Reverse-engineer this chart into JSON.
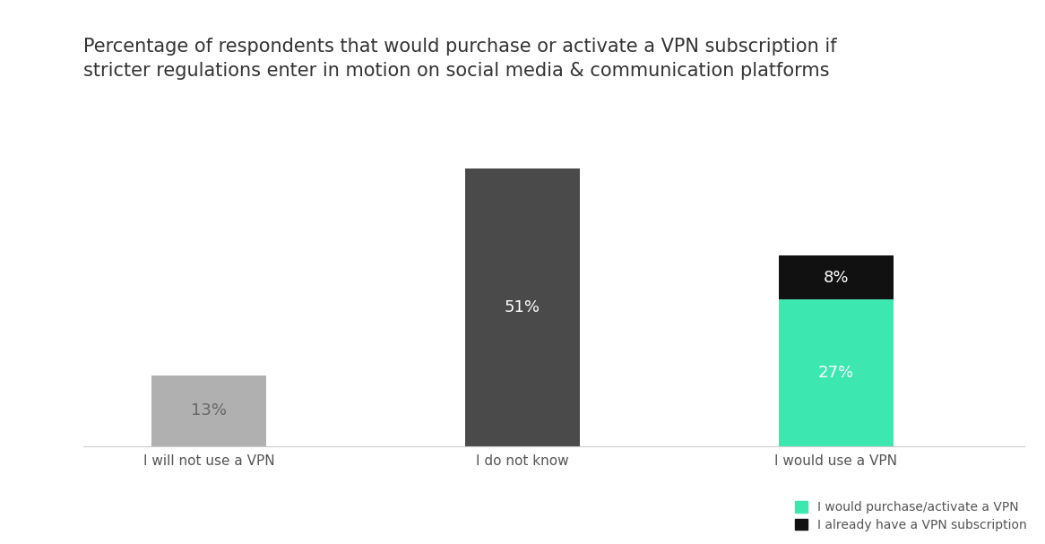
{
  "title": "Percentage of respondents that would purchase or activate a VPN subscription if\nstricter regulations enter in motion on social media & communication platforms",
  "bars": [
    {
      "label": "I will not use a VPN",
      "segments": [
        {
          "value": 13,
          "color": "#b0b0b0",
          "text": "13%",
          "text_color": "#666666"
        }
      ]
    },
    {
      "label": "I do not know",
      "segments": [
        {
          "value": 51,
          "color": "#4a4a4a",
          "text": "51%",
          "text_color": "#ffffff"
        }
      ]
    },
    {
      "label": "I would use a VPN",
      "segments": [
        {
          "value": 27,
          "color": "#3de8b0",
          "text": "27%",
          "text_color": "#ffffff"
        },
        {
          "value": 8,
          "color": "#111111",
          "text": "8%",
          "text_color": "#ffffff"
        }
      ]
    }
  ],
  "legend": [
    {
      "label": "I would purchase/activate a VPN",
      "color": "#3de8b0"
    },
    {
      "label": "I already have a VPN subscription",
      "color": "#111111"
    }
  ],
  "ylim": [
    0,
    60
  ],
  "bar_width": 0.55,
  "x_positions": [
    0,
    1.5,
    3.0
  ],
  "xlim": [
    -0.6,
    3.9
  ],
  "background_color": "#ffffff",
  "title_fontsize": 15,
  "label_fontsize": 11,
  "value_fontsize": 13
}
